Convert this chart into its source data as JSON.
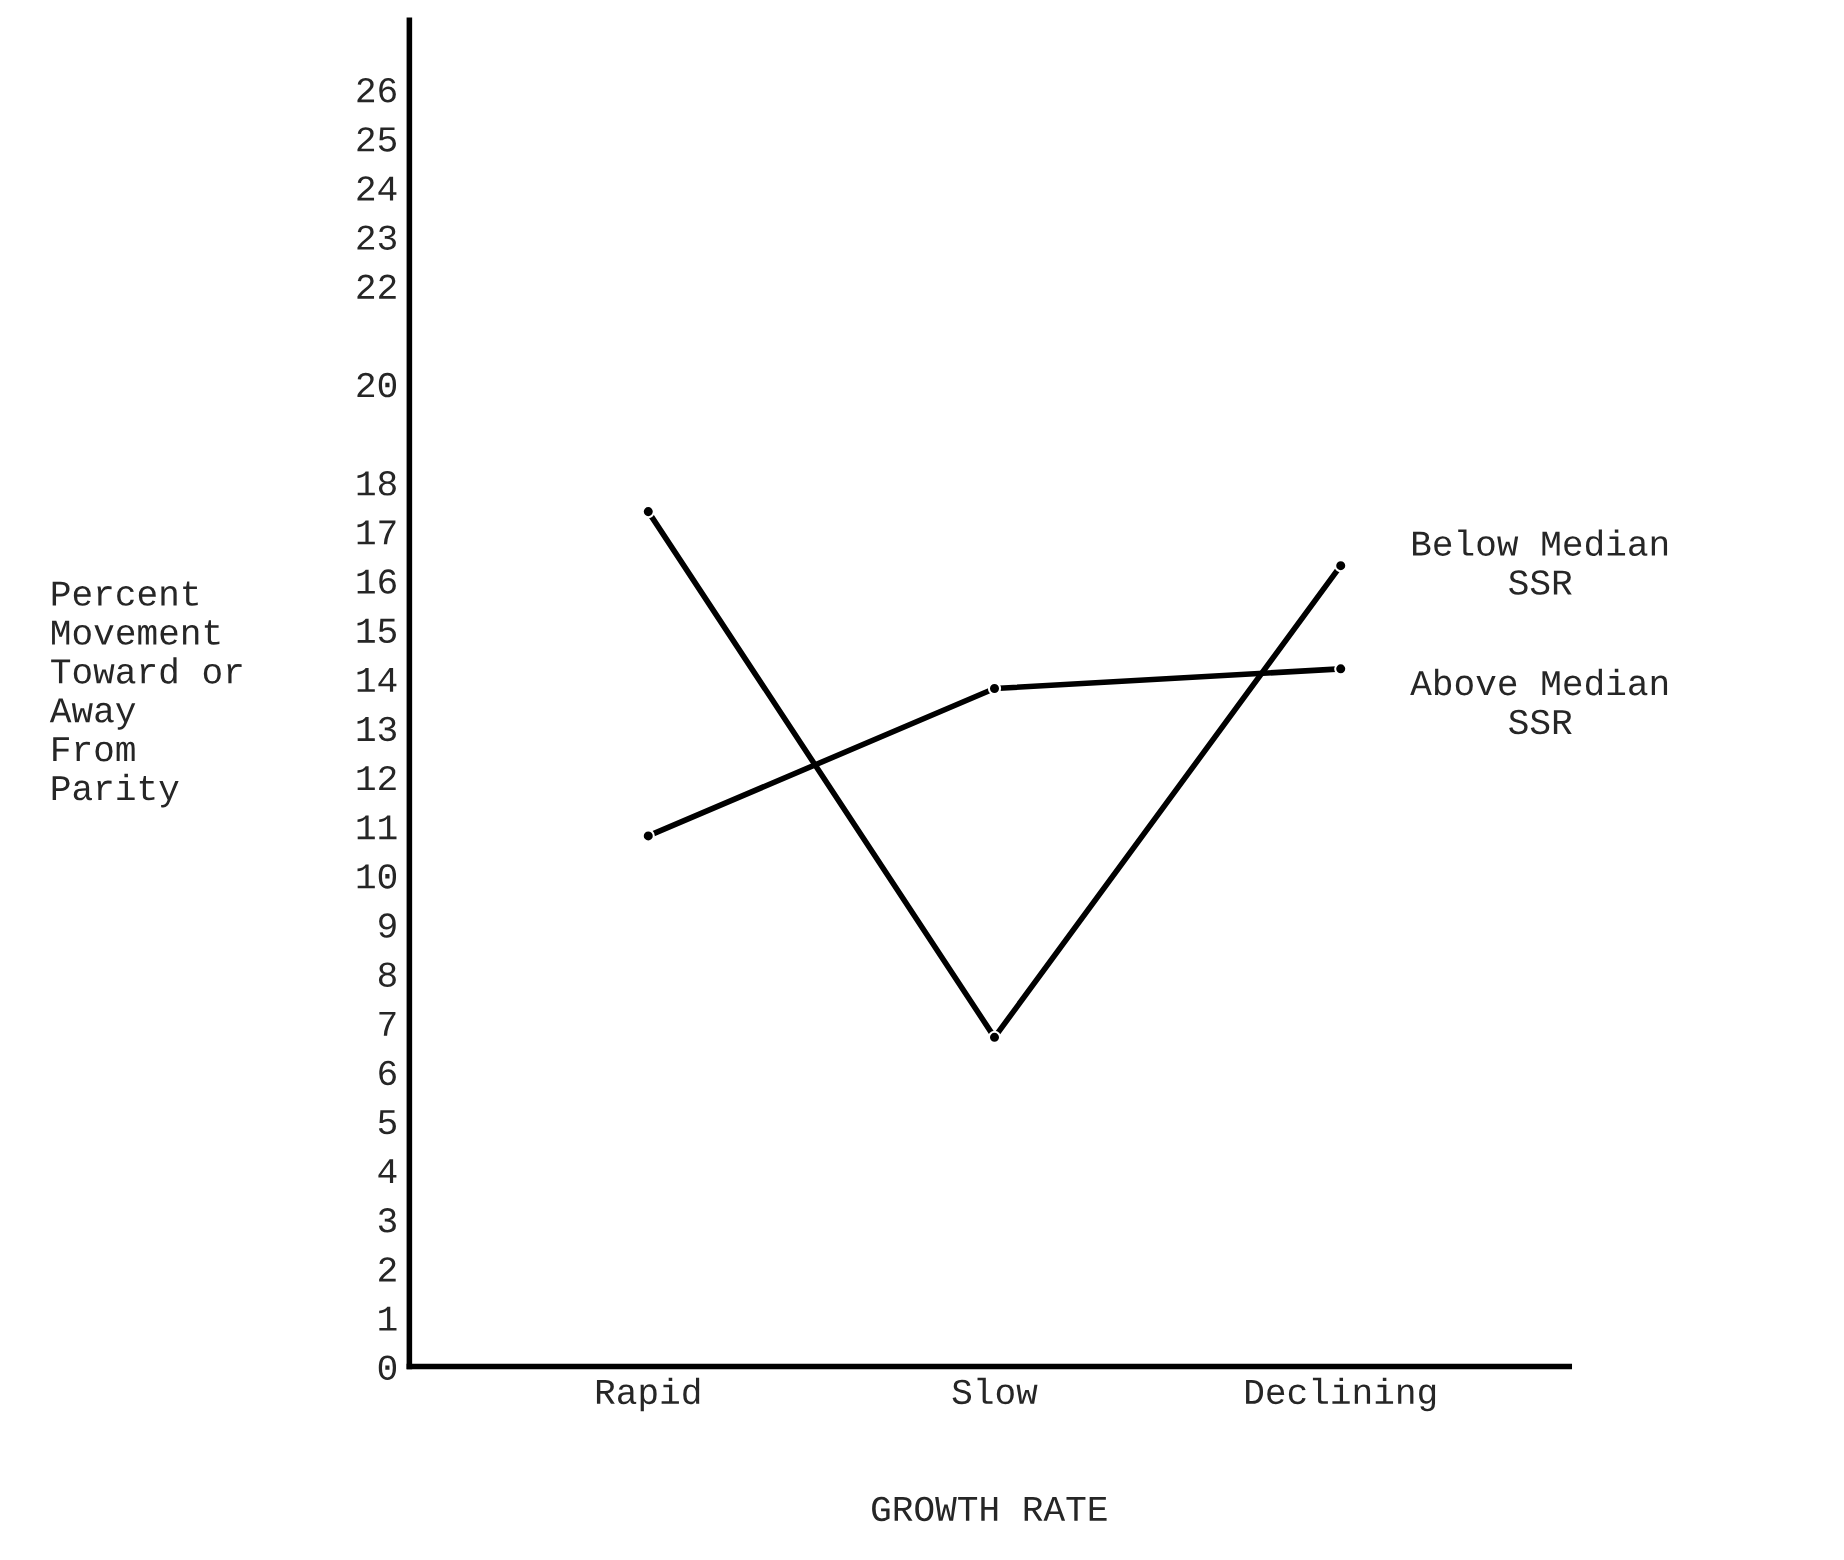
{
  "chart_data": {
    "type": "line",
    "xlabel": "GROWTH RATE",
    "ylabel": "Percent\nMovement\nToward or\nAway\nFrom\nParity",
    "categories": [
      "Rapid",
      "Slow",
      "Declining"
    ],
    "series": [
      {
        "name": "Below Median\nSSR",
        "color": "#000000",
        "values": [
          17.4,
          6.7,
          16.3
        ]
      },
      {
        "name": "Above Median\nSSR",
        "color": "#000000",
        "values": [
          10.8,
          13.8,
          14.2
        ]
      }
    ],
    "ylim": [
      0,
      27.4
    ],
    "yticks": [
      0,
      1,
      2,
      3,
      4,
      5,
      6,
      7,
      8,
      9,
      10,
      11,
      12,
      13,
      14,
      15,
      16,
      17,
      18,
      20,
      22,
      23,
      24,
      25,
      26
    ],
    "grid": false,
    "legend": false,
    "marker": "circle",
    "line_style": "solid"
  }
}
